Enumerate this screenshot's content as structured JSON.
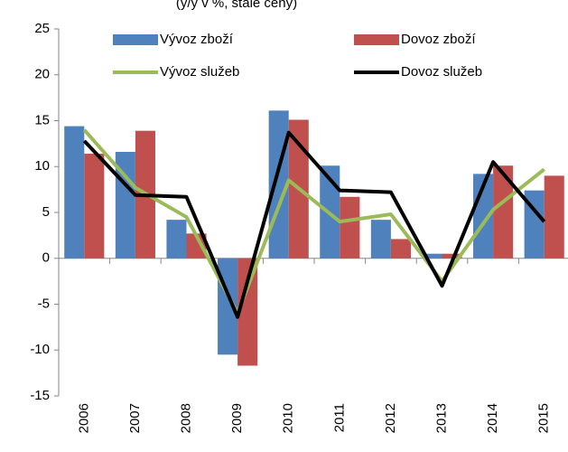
{
  "chart_data": {
    "type": "bar",
    "title": "(y/y v %, stálé ceny)",
    "categories": [
      "2006",
      "2007",
      "2008",
      "2009",
      "2010",
      "2011",
      "2012",
      "2013",
      "2014",
      "2015"
    ],
    "series": [
      {
        "name": "Vývoz zboží",
        "type": "bar",
        "color": "#4f81bd",
        "values": [
          14.4,
          11.6,
          4.2,
          -10.5,
          16.1,
          10.1,
          4.2,
          0.5,
          9.2,
          7.4
        ]
      },
      {
        "name": "Dovoz zboží",
        "type": "bar",
        "color": "#c0504d",
        "values": [
          11.4,
          13.9,
          2.7,
          -11.7,
          15.1,
          6.7,
          2.1,
          0.5,
          10.1,
          9.0
        ]
      },
      {
        "name": "Vývoz služeb",
        "type": "line",
        "color": "#9bbb59",
        "values": [
          14.0,
          7.7,
          4.5,
          -6.0,
          8.5,
          4.0,
          4.8,
          -2.5,
          5.3,
          9.7
        ]
      },
      {
        "name": "Dovoz služeb",
        "type": "line",
        "color": "#000000",
        "values": [
          12.8,
          6.9,
          6.7,
          -6.4,
          13.7,
          7.4,
          7.2,
          -3.0,
          10.5,
          4.0
        ]
      }
    ],
    "ylim": [
      -15,
      25
    ],
    "yticks": [
      -15,
      -10,
      -5,
      0,
      5,
      10,
      15,
      20,
      25
    ],
    "grid": false
  }
}
